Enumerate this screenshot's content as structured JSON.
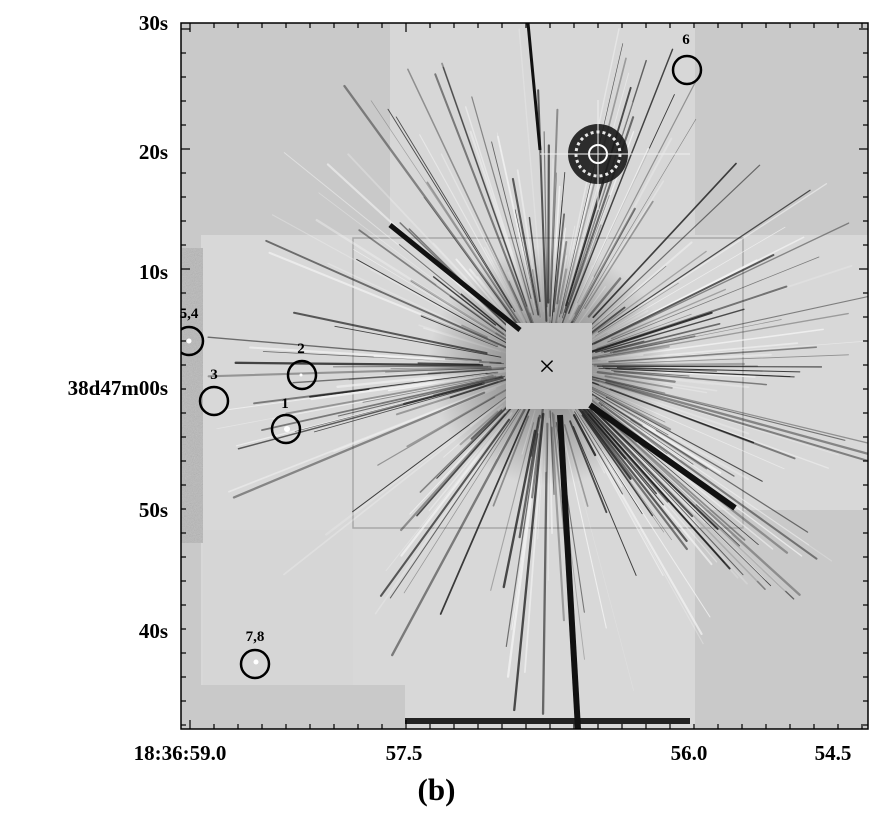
{
  "figure": {
    "panel_label": "(b)",
    "y_axis": {
      "ticks": [
        "30s",
        "20s",
        "10s",
        "38d47m00s",
        "50s",
        "40s"
      ]
    },
    "x_axis": {
      "ticks": [
        "18:36:59.0",
        "57.5",
        "56.0",
        "54.5"
      ]
    },
    "sources": [
      {
        "id": "1",
        "label": "1"
      },
      {
        "id": "2",
        "label": "2"
      },
      {
        "id": "3",
        "label": "3"
      },
      {
        "id": "5,4",
        "label": "5,4"
      },
      {
        "id": "6",
        "label": "6"
      },
      {
        "id": "7,8",
        "label": "7,8"
      }
    ],
    "center_marker": "×",
    "colors": {
      "background": "#c9c9c9",
      "frame": "#000000",
      "circle": "#000000"
    }
  }
}
